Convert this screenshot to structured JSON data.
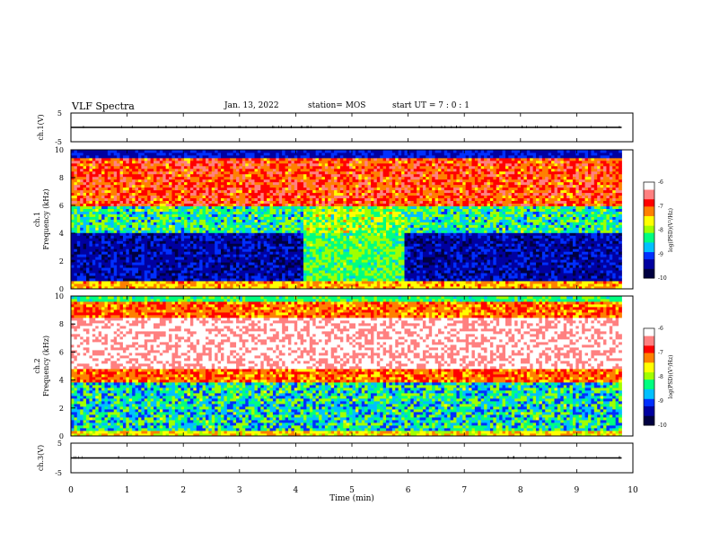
{
  "header": {
    "title": "VLF Spectra",
    "date": "Jan. 13, 2022",
    "station": "station= MOS",
    "start": "start UT =  7 : 0 : 1"
  },
  "colors": {
    "palette": [
      "#000040",
      "#0000a0",
      "#0030ff",
      "#00c0ff",
      "#00ff80",
      "#a0ff00",
      "#ffff00",
      "#ff8000",
      "#ff0000",
      "#ff8080",
      "#ffffff"
    ]
  },
  "chart_data": [
    {
      "type": "line",
      "panel": "ch1-waveform",
      "ylabel": "ch.1(V)",
      "yticks": [
        "5",
        "-5"
      ],
      "ylim": [
        -5,
        5
      ],
      "x": [
        0,
        10
      ],
      "y": [
        0,
        0
      ]
    },
    {
      "type": "heatmap",
      "panel": "ch1-spectrogram",
      "ylabel": "ch.1\nFrequency (kHz)",
      "ylabel_line1": "ch.1",
      "ylabel_line2": "Frequency (kHz)",
      "yticks": [
        "0",
        "2",
        "4",
        "6",
        "8",
        "10"
      ],
      "ylim": [
        0,
        10
      ],
      "xlim": [
        0,
        9.8
      ],
      "colorbar": {
        "ticks": [
          "-6",
          "-7",
          "-8",
          "-9",
          "-10"
        ],
        "range": [
          -10,
          -6
        ],
        "label": "log(PSD)(V²/Hz)"
      }
    },
    {
      "type": "heatmap",
      "panel": "ch2-spectrogram",
      "ylabel_line1": "ch.2",
      "ylabel_line2": "Frequency (kHz)",
      "yticks": [
        "0",
        "2",
        "4",
        "6",
        "8",
        "10"
      ],
      "ylim": [
        0,
        10
      ],
      "xlim": [
        0,
        9.8
      ],
      "colorbar": {
        "ticks": [
          "-6",
          "-7",
          "-8",
          "-9",
          "-10"
        ],
        "range": [
          -10,
          -6
        ],
        "label": "log(PSD)(V²/Hz)"
      }
    },
    {
      "type": "line",
      "panel": "ch3-waveform",
      "ylabel": "ch.3(V)",
      "yticks": [
        "5",
        "-5"
      ],
      "ylim": [
        -5,
        5
      ],
      "x": [
        0,
        10
      ],
      "y": [
        0,
        0
      ]
    }
  ],
  "xaxis": {
    "label": "Time (min)",
    "ticks": [
      "0",
      "1",
      "2",
      "3",
      "4",
      "5",
      "6",
      "7",
      "8",
      "9",
      "10"
    ],
    "range": [
      0,
      10
    ]
  }
}
